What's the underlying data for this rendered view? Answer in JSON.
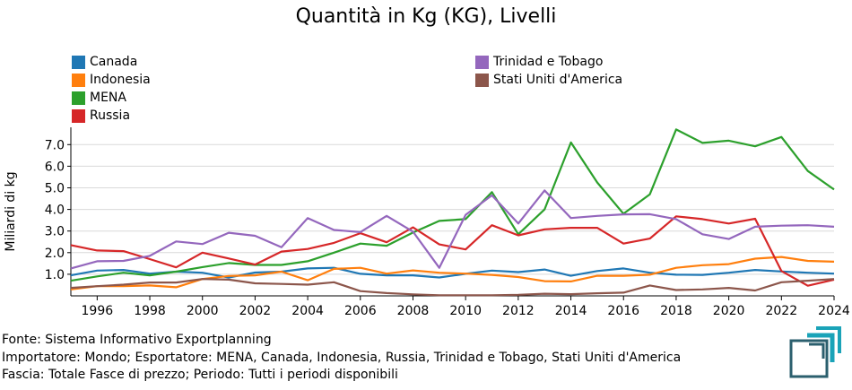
{
  "chart_data": {
    "type": "line",
    "title": "Quantità in Kg (KG), Livelli",
    "ylabel": "Miliardi di kg",
    "xlabel": "",
    "xlim": [
      1995,
      2024
    ],
    "ylim": [
      0,
      7.8
    ],
    "x_ticks": [
      "1996",
      "1998",
      "2000",
      "2002",
      "2004",
      "2006",
      "2008",
      "2010",
      "2012",
      "2014",
      "2016",
      "2018",
      "2020",
      "2022",
      "2024"
    ],
    "y_ticks": [
      "1.0",
      "2.0",
      "3.0",
      "4.0",
      "5.0",
      "6.0",
      "7.0"
    ],
    "grid": "horizontal",
    "legend_position": "top",
    "x": [
      1995,
      1996,
      1997,
      1998,
      1999,
      2000,
      2001,
      2002,
      2003,
      2004,
      2005,
      2006,
      2007,
      2008,
      2009,
      2010,
      2011,
      2012,
      2013,
      2014,
      2015,
      2016,
      2017,
      2018,
      2019,
      2020,
      2021,
      2022,
      2023,
      2024
    ],
    "series": [
      {
        "name": "Canada",
        "color": "#1f77b4",
        "values": [
          0.95,
          1.17,
          1.2,
          1.03,
          1.12,
          1.07,
          0.85,
          1.08,
          1.12,
          1.27,
          1.3,
          1.02,
          0.95,
          0.95,
          0.85,
          1.02,
          1.17,
          1.1,
          1.22,
          0.93,
          1.15,
          1.27,
          1.07,
          0.98,
          0.97,
          1.07,
          1.2,
          1.13,
          1.07,
          1.03
        ]
      },
      {
        "name": "Indonesia",
        "color": "#ff7f0e",
        "values": [
          0.3,
          0.45,
          0.45,
          0.48,
          0.4,
          0.78,
          0.92,
          0.95,
          1.12,
          0.72,
          1.25,
          1.3,
          1.03,
          1.18,
          1.07,
          1.03,
          0.97,
          0.87,
          0.68,
          0.67,
          0.93,
          0.93,
          0.98,
          1.3,
          1.42,
          1.47,
          1.72,
          1.8,
          1.62,
          1.58
        ]
      },
      {
        "name": "MENA",
        "color": "#2ca02c",
        "values": [
          0.7,
          0.9,
          1.07,
          0.95,
          1.12,
          1.33,
          1.52,
          1.43,
          1.43,
          1.6,
          2.0,
          2.42,
          2.32,
          2.93,
          3.47,
          3.55,
          4.8,
          2.85,
          4.0,
          7.1,
          5.25,
          3.8,
          4.7,
          7.7,
          7.08,
          7.18,
          6.92,
          7.35,
          5.78,
          4.92
        ]
      },
      {
        "name": "Russia",
        "color": "#d62728",
        "values": [
          2.35,
          2.1,
          2.07,
          1.7,
          1.32,
          2.0,
          1.73,
          1.45,
          2.05,
          2.17,
          2.45,
          2.9,
          2.48,
          3.17,
          2.38,
          2.15,
          3.27,
          2.8,
          3.08,
          3.15,
          3.15,
          2.42,
          2.65,
          3.68,
          3.55,
          3.35,
          3.57,
          1.15,
          0.47,
          0.75
        ]
      },
      {
        "name": "Trinidad e Tobago",
        "color": "#9467bd",
        "values": [
          1.27,
          1.6,
          1.62,
          1.85,
          2.52,
          2.4,
          2.92,
          2.78,
          2.25,
          3.6,
          3.05,
          2.95,
          3.7,
          2.97,
          1.3,
          3.75,
          4.65,
          3.35,
          4.88,
          3.6,
          3.7,
          3.77,
          3.78,
          3.55,
          2.85,
          2.63,
          3.2,
          3.25,
          3.27,
          3.2
        ]
      },
      {
        "name": "Stati Uniti d'America",
        "color": "#8c564b",
        "values": [
          0.37,
          0.45,
          0.52,
          0.62,
          0.62,
          0.78,
          0.75,
          0.58,
          0.55,
          0.52,
          0.63,
          0.22,
          0.13,
          0.07,
          0.03,
          0.03,
          0.03,
          0.05,
          0.1,
          0.08,
          0.12,
          0.15,
          0.48,
          0.27,
          0.3,
          0.37,
          0.25,
          0.63,
          0.7,
          0.78
        ]
      }
    ]
  },
  "footer": {
    "line1": "Fonte: Sistema Informativo Exportplanning",
    "line2": "Importatore: Mondo; Esportatore: MENA, Canada, Indonesia, Russia, Trinidad e Tobago, Stati Uniti d'America",
    "line3": "Fascia: Totale Fasce di prezzo; Periodo: Tutti i periodi disponibili"
  },
  "logo": {
    "name": "exportplanning-logo-icon",
    "color": "#2b5f6e",
    "accent": "#1aa3b8"
  }
}
